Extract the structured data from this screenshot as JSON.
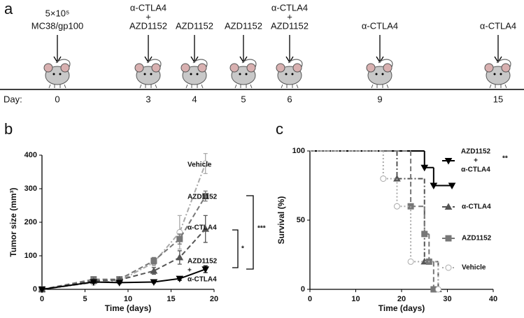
{
  "panel_labels": [
    "a",
    "b",
    "c"
  ],
  "timeline": {
    "day_label": "Day:",
    "events": [
      {
        "day": 0,
        "treatment": [
          "5×10⁵",
          "MC38/gp100"
        ]
      },
      {
        "day": 3,
        "treatment": [
          "α-CTLA4",
          "+",
          "AZD1152"
        ]
      },
      {
        "day": 4,
        "treatment": [
          "AZD1152"
        ]
      },
      {
        "day": 5,
        "treatment": [
          "AZD1152"
        ]
      },
      {
        "day": 6,
        "treatment": [
          "α-CTLA4",
          "+",
          "AZD1152"
        ]
      },
      {
        "day": 9,
        "treatment": [
          "α-CTLA4"
        ]
      },
      {
        "day": 15,
        "treatment": [
          "α-CTLA4"
        ]
      }
    ]
  },
  "chart_data": [
    {
      "type": "line",
      "xlabel": "Time (days)",
      "ylabel": "Tumor size (mm³)",
      "x": [
        0,
        6,
        9,
        13,
        16,
        19
      ],
      "xlim": [
        0,
        20
      ],
      "xticks": [
        0,
        5,
        10,
        15,
        20
      ],
      "ylim": [
        0,
        400
      ],
      "yticks": [
        0,
        100,
        200,
        300,
        400
      ],
      "series": [
        {
          "name": "Vehicle",
          "color": "#aaaaaa",
          "dash": "dashdot",
          "marker": "circle",
          "values": [
            0,
            20,
            25,
            80,
            170,
            375
          ],
          "errors": [
            0,
            5,
            5,
            10,
            50,
            30
          ]
        },
        {
          "name": "AZD1152",
          "color": "#777777",
          "dash": "dashed",
          "marker": "square",
          "values": [
            0,
            30,
            30,
            85,
            150,
            278
          ],
          "errors": [
            0,
            5,
            5,
            10,
            15,
            15
          ]
        },
        {
          "name": "α-CTLA4",
          "color": "#555555",
          "dash": "dashed",
          "marker": "triangle-up",
          "values": [
            0,
            25,
            28,
            55,
            95,
            180
          ],
          "errors": [
            0,
            5,
            5,
            10,
            20,
            40
          ]
        },
        {
          "name": [
            "AZD1152",
            "+",
            "α-CTLA4"
          ],
          "color": "#000000",
          "dash": "solid",
          "marker": "triangle-down",
          "values": [
            0,
            22,
            20,
            22,
            32,
            60
          ],
          "errors": [
            0,
            3,
            3,
            3,
            5,
            10
          ]
        }
      ],
      "annotations": [
        "*",
        "***"
      ]
    },
    {
      "type": "step",
      "xlabel": "Time (days)",
      "ylabel": "Survival (%)",
      "xlim": [
        0,
        40
      ],
      "xticks": [
        0,
        10,
        20,
        30,
        40
      ],
      "ylim": [
        0,
        100
      ],
      "yticks": [
        0,
        50,
        100
      ],
      "series": [
        {
          "name": [
            "AZD1152",
            "+",
            "α-CTLA4"
          ],
          "color": "#000000",
          "dash": "solid",
          "marker": "triangle-down",
          "x": [
            0,
            25,
            27,
            31
          ],
          "values": [
            100,
            88,
            75,
            75
          ]
        },
        {
          "name": "α-CTLA4",
          "color": "#555555",
          "dash": "dashdot",
          "marker": "triangle-up",
          "x": [
            0,
            19,
            25,
            28
          ],
          "values": [
            100,
            80,
            20,
            0
          ]
        },
        {
          "name": "AZD1152",
          "color": "#777777",
          "dash": "dashed",
          "marker": "square",
          "x": [
            0,
            22,
            25,
            26,
            27
          ],
          "values": [
            100,
            60,
            40,
            20,
            0
          ]
        },
        {
          "name": "Vehicle",
          "color": "#aaaaaa",
          "dash": "dotted",
          "marker": "circle",
          "x": [
            0,
            16,
            19,
            22,
            28
          ],
          "values": [
            100,
            80,
            60,
            20,
            0
          ]
        }
      ],
      "annotations": [
        "**"
      ]
    }
  ]
}
